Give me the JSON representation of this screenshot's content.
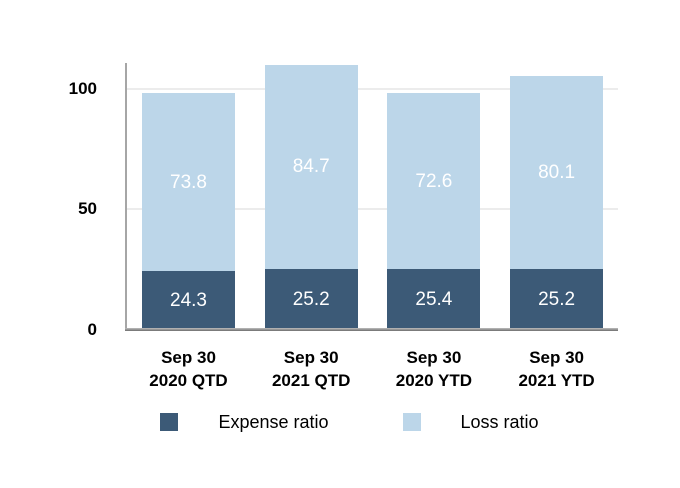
{
  "chart_data": {
    "type": "bar",
    "stacked": true,
    "title": "",
    "xlabel": "",
    "ylabel": "",
    "categories": [
      {
        "line1": "Sep 30",
        "line2": "2020 QTD"
      },
      {
        "line1": "Sep 30",
        "line2": "2021 QTD"
      },
      {
        "line1": "Sep 30",
        "line2": "2020 YTD"
      },
      {
        "line1": "Sep 30",
        "line2": "2021 YTD"
      }
    ],
    "series": [
      {
        "name": "Expense ratio",
        "color": "#3C5A77",
        "values": [
          24.3,
          25.2,
          25.4,
          25.2
        ]
      },
      {
        "name": "Loss ratio",
        "color": "#BCD6E9",
        "values": [
          73.8,
          84.7,
          72.6,
          80.1
        ]
      }
    ],
    "y_ticks": [
      0,
      50,
      100
    ],
    "ylim": [
      0,
      110.6
    ],
    "grid": true,
    "legend_position": "bottom",
    "styles": {
      "value_label_color": "#FFFFFF",
      "axis_text_color": "#000000",
      "gridline_color": "#ECECEC",
      "y_axis_line_color": "#A6A6A6",
      "baseline_color": "#808080",
      "background": "#FFFFFF"
    }
  }
}
